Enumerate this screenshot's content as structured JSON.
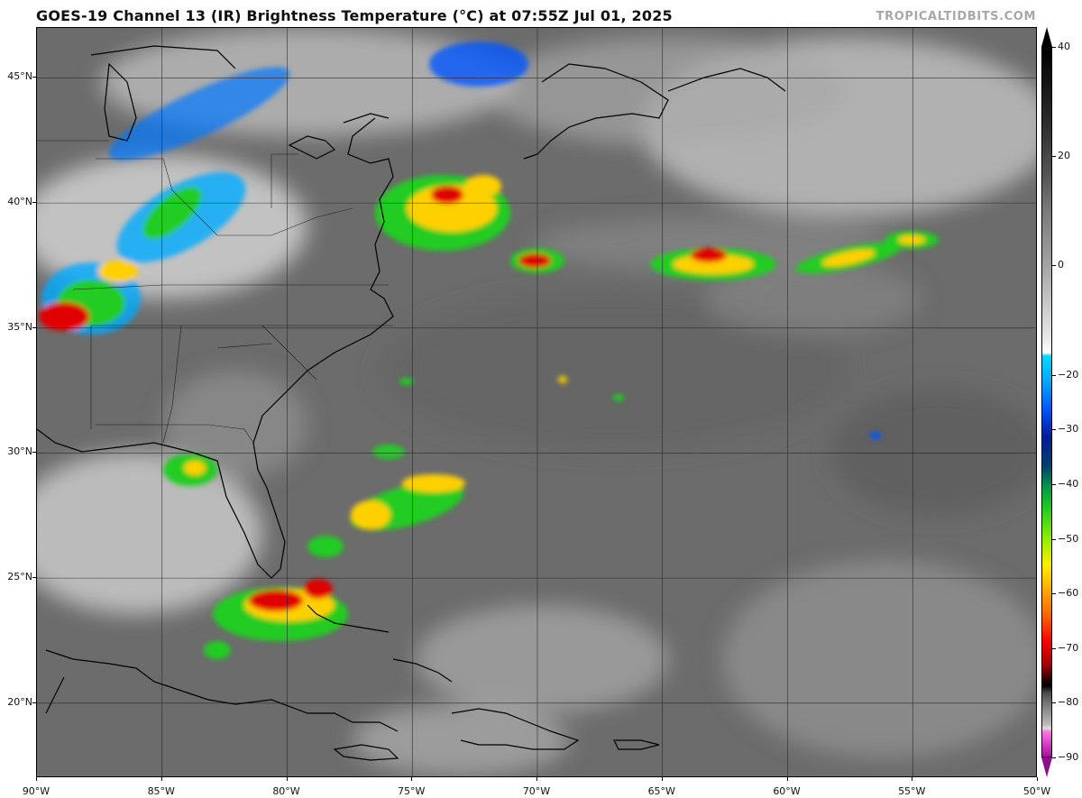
{
  "header": {
    "title": "GOES-19 Channel 13 (IR) Brightness Temperature (°C) at 07:55Z Jul 01, 2025",
    "credit": "TROPICALTIDBITS.COM"
  },
  "map": {
    "lat_range": [
      17,
      47
    ],
    "lon_range": [
      -90,
      -50
    ],
    "latitude_labels": [
      {
        "value": 45,
        "text": "45°N"
      },
      {
        "value": 40,
        "text": "40°N"
      },
      {
        "value": 35,
        "text": "35°N"
      },
      {
        "value": 30,
        "text": "30°N"
      },
      {
        "value": 25,
        "text": "25°N"
      },
      {
        "value": 20,
        "text": "20°N"
      }
    ],
    "longitude_labels": [
      {
        "value": -90,
        "text": "90°W"
      },
      {
        "value": -85,
        "text": "85°W"
      },
      {
        "value": -80,
        "text": "80°W"
      },
      {
        "value": -75,
        "text": "75°W"
      },
      {
        "value": -70,
        "text": "70°W"
      },
      {
        "value": -65,
        "text": "65°W"
      },
      {
        "value": -60,
        "text": "60°W"
      },
      {
        "value": -55,
        "text": "55°W"
      },
      {
        "value": -50,
        "text": "50°W"
      }
    ]
  },
  "colorbar": {
    "range": [
      -90,
      40
    ],
    "ticks": [
      "40",
      "20",
      "0",
      "−20",
      "−30",
      "−40",
      "−50",
      "−60",
      "−70",
      "−80",
      "−90"
    ],
    "tick_values": [
      40,
      20,
      0,
      -20,
      -30,
      -40,
      -50,
      -60,
      -70,
      -80,
      -90
    ]
  },
  "colors": {
    "background_ir": "#6f6f6f",
    "cold_cloud_red": "#e00000",
    "cold_cloud_yellow": "#ffd000",
    "cold_cloud_green": "#22cc22",
    "cold_cloud_blue": "#0077ff"
  }
}
